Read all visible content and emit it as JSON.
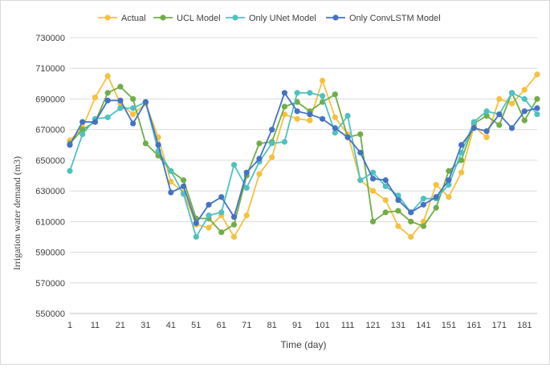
{
  "chart_data": {
    "type": "line",
    "title": "",
    "xlabel": "Time (day)",
    "ylabel": "Irrigation water demand (m3)",
    "ylim": [
      550000,
      730000
    ],
    "y_ticks": [
      550000,
      570000,
      590000,
      610000,
      630000,
      650000,
      670000,
      690000,
      710000,
      730000
    ],
    "y_tick_labels": [
      "550000",
      "570000",
      "590000",
      "610000",
      "630000",
      "650000",
      "670000",
      "690000",
      "710000",
      "730000"
    ],
    "x_tick_labels": [
      "1",
      "11",
      "21",
      "31",
      "41",
      "51",
      "61",
      "71",
      "81",
      "91",
      "101",
      "111",
      "121",
      "131",
      "141",
      "151",
      "161",
      "171",
      "181"
    ],
    "grid": true,
    "legend_position": "top",
    "x": [
      1,
      6,
      11,
      16,
      21,
      26,
      31,
      36,
      41,
      46,
      51,
      56,
      61,
      66,
      71,
      76,
      81,
      86,
      91,
      96,
      101,
      106,
      111,
      116,
      121,
      126,
      131,
      136,
      141,
      146,
      151,
      156,
      161,
      166,
      171,
      176,
      181,
      186
    ],
    "series": [
      {
        "name": "Actual",
        "color": "#f5c13d",
        "values": [
          663000,
          671000,
          691000,
          705000,
          687000,
          680000,
          687000,
          665000,
          636000,
          629000,
          608000,
          606000,
          614000,
          600000,
          614000,
          641000,
          652000,
          680000,
          677000,
          676000,
          702000,
          678000,
          667000,
          637000,
          630000,
          624000,
          607000,
          600000,
          610000,
          634000,
          626000,
          642000,
          672000,
          665000,
          690000,
          687000,
          696000,
          706000
        ]
      },
      {
        "name": "UCL Model",
        "color": "#70ad47",
        "values": [
          661000,
          670000,
          675000,
          694000,
          698000,
          690000,
          661000,
          653000,
          643000,
          637000,
          612000,
          612000,
          603000,
          608000,
          640000,
          661000,
          662000,
          685000,
          688000,
          682000,
          688000,
          693000,
          665000,
          667000,
          610000,
          616000,
          617000,
          610000,
          607000,
          619000,
          643000,
          650000,
          674000,
          679000,
          673000,
          694000,
          676000,
          690000
        ]
      },
      {
        "name": "Only UNet Model",
        "color": "#4fc1c1",
        "values": [
          643000,
          667000,
          677000,
          678000,
          684000,
          684000,
          688000,
          656000,
          643000,
          628000,
          600000,
          614000,
          616000,
          647000,
          632000,
          649000,
          661000,
          662000,
          694000,
          694000,
          692000,
          668000,
          679000,
          637000,
          642000,
          633000,
          627000,
          616000,
          625000,
          625000,
          634000,
          655000,
          675000,
          682000,
          680000,
          694000,
          690000,
          680000
        ]
      },
      {
        "name": "Only ConvLSTM Model",
        "color": "#4472c4",
        "values": [
          660000,
          675000,
          675000,
          689000,
          689000,
          674000,
          688000,
          660000,
          629000,
          633000,
          609000,
          621000,
          626000,
          613000,
          642000,
          651000,
          670000,
          694000,
          682000,
          680000,
          677000,
          671000,
          665000,
          655000,
          638000,
          637000,
          624000,
          616000,
          621000,
          626000,
          637000,
          660000,
          671000,
          669000,
          680000,
          671000,
          682000,
          684000
        ]
      }
    ]
  }
}
